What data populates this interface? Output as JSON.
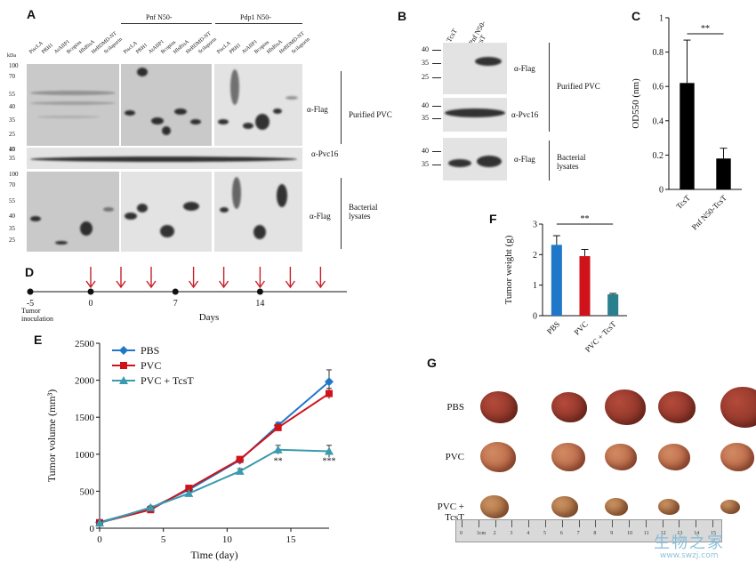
{
  "panels": {
    "A": "A",
    "B": "B",
    "C": "C",
    "D": "D",
    "E": "E",
    "F": "F",
    "G": "G"
  },
  "panelA": {
    "group_pnf": "Pnf N50-",
    "group_pdp1": "Pdp1 N50-",
    "kda": "kDa",
    "lanes": [
      "PiscLA",
      "PBH1",
      "AtAIIP1",
      "Bcopins",
      "HlsBisA",
      "HeBDMD-NT",
      "Scilaporin"
    ],
    "mw_top": [
      "100",
      "70",
      "55",
      "40",
      "35",
      "25",
      "15"
    ],
    "mw_mid": [
      "40",
      "35"
    ],
    "mw_bot": [
      "100",
      "70",
      "55",
      "40",
      "35",
      "25"
    ],
    "label_flag": "α-Flag",
    "label_pvc16": "α-Pvc16",
    "label_purified": "Purified PVC",
    "label_flag2": "α-Flag",
    "label_bacterial": "Bacterial\nlysates"
  },
  "panelB": {
    "lane1": "TcsT",
    "lane2": "Pnf N50-\nTcsT",
    "mw_top": [
      "40",
      "35",
      "25"
    ],
    "mw_mid": [
      "40",
      "35"
    ],
    "mw_bot": [
      "40",
      "35"
    ],
    "label_flag": "α-Flag",
    "label_pvc16": "α-Pvc16",
    "label_flag2": "α-Flag",
    "label_purified": "Purified PVC",
    "label_bacterial": "Bacterial\nlysates"
  },
  "chart_data": [
    {
      "panel": "C",
      "type": "bar",
      "categories": [
        "TcsT",
        "Pnf N50-TcsT"
      ],
      "values": [
        0.62,
        0.18
      ],
      "errors": [
        0.25,
        0.06
      ],
      "ylabel": "OD550 (nm)",
      "ylim": [
        0,
        1
      ],
      "yticks": [
        "0",
        "0.2",
        "0.4",
        "0.6",
        "0.8",
        "1"
      ],
      "significance": "**",
      "colors": [
        "#000000",
        "#000000"
      ]
    },
    {
      "panel": "F",
      "type": "bar",
      "categories": [
        "PBS",
        "PVC",
        "PVC + TcsT"
      ],
      "values": [
        2.32,
        1.95,
        0.7
      ],
      "errors": [
        0.3,
        0.22,
        0.03
      ],
      "ylabel": "Tumor weight (g)",
      "ylim": [
        0,
        3
      ],
      "yticks": [
        "0",
        "1",
        "2",
        "3"
      ],
      "significance": "**",
      "colors": [
        "#1f77c9",
        "#d0121b",
        "#2a7f8f"
      ]
    },
    {
      "panel": "E",
      "type": "line",
      "x": [
        0,
        4,
        7,
        11,
        14,
        18
      ],
      "series": [
        {
          "name": "PBS",
          "values": [
            80,
            270,
            520,
            920,
            1390,
            1980
          ],
          "errors": [
            20,
            20,
            25,
            40,
            40,
            160
          ],
          "color": "#1f77c9",
          "marker": "diamond"
        },
        {
          "name": "PVC",
          "values": [
            75,
            250,
            540,
            930,
            1360,
            1820
          ],
          "errors": [
            20,
            20,
            25,
            35,
            45,
            70
          ],
          "color": "#d0121b",
          "marker": "square"
        },
        {
          "name": "PVC + TcsT",
          "values": [
            70,
            280,
            470,
            770,
            1060,
            1040
          ],
          "errors": [
            20,
            20,
            30,
            35,
            60,
            80
          ],
          "color": "#3a9aae",
          "marker": "triangle"
        }
      ],
      "xlabel": "Time (day)",
      "ylabel": "Tumor volume (mm³)",
      "xlim": [
        0,
        18
      ],
      "ylim": [
        0,
        2500
      ],
      "xticks": [
        "0",
        "5",
        "10",
        "15"
      ],
      "yticks": [
        "0",
        "500",
        "1000",
        "1500",
        "2000",
        "2500"
      ],
      "annotations": [
        {
          "x": 14,
          "text": "**"
        },
        {
          "x": 18,
          "text": "***"
        }
      ]
    }
  ],
  "panelD": {
    "ticks": [
      "-5",
      "0",
      "7",
      "14"
    ],
    "tumor_label": "Tumor\ninoculation",
    "xlabel": "Days",
    "arrow_days": [
      0,
      2.5,
      5,
      8.5,
      11,
      14,
      16.5,
      19
    ]
  },
  "panelG": {
    "rows": [
      "PBS",
      "PVC",
      "PVC + TcsT"
    ],
    "ruler_unit": "1cm",
    "ruler_numbers": [
      "0",
      "1cm",
      "2",
      "3",
      "4",
      "5",
      "6",
      "7",
      "8",
      "9",
      "10",
      "11",
      "12",
      "13",
      "14",
      "15"
    ]
  },
  "watermark": {
    "title": "生物之家",
    "url": "www.swzj.com"
  }
}
